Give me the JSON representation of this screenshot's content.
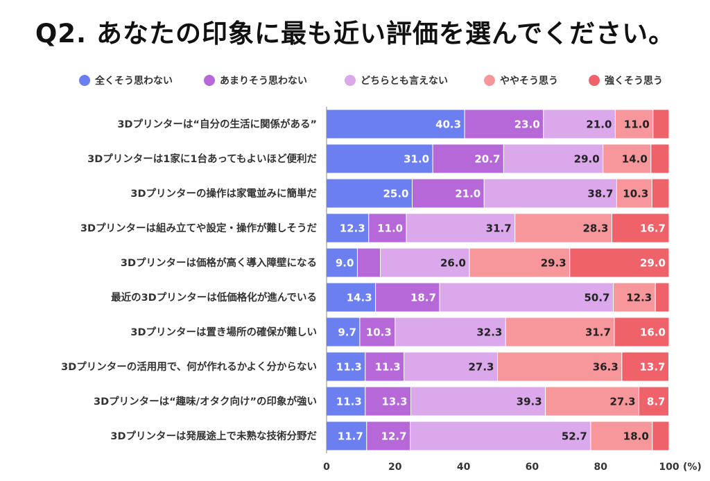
{
  "title": "Q2. あなたの印象に最も近い評価を選んでください。",
  "chart_data": {
    "type": "bar",
    "orientation": "horizontal",
    "stacked": true,
    "unit_suffix": "(%)",
    "xlim": [
      0,
      100
    ],
    "xticks": [
      "0",
      "20",
      "40",
      "60",
      "80",
      "100"
    ],
    "legend_position": "top",
    "categories": [
      "3Dプリンターは“自分の生活に関係がある”",
      "3Dプリンターは1家に1台あってもよいほど便利だ",
      "3Dプリンターの操作は家電並みに簡単だ",
      "3Dプリンターは組み立てや設定・操作が難しそうだ",
      "3Dプリンターは価格が高く導入障壁になる",
      "最近の3Dプリンターは低価格化が進んでいる",
      "3Dプリンターは置き場所の確保が難しい",
      "3Dプリンターの活用用で、何が作れるかよく分からない",
      "3Dプリンターは“趣味/オタク向け”の印象が強い",
      "3Dプリンターは発展途上で未熟な技術分野だ"
    ],
    "series": [
      {
        "name": "全くそう思わない",
        "color": "#6b7ff0",
        "text_color": "#ffffff",
        "values": [
          40.3,
          31.0,
          25.0,
          12.3,
          9.0,
          14.3,
          9.7,
          11.3,
          11.3,
          11.7
        ]
      },
      {
        "name": "あまりそう思わない",
        "color": "#b668d9",
        "text_color": "#ffffff",
        "values": [
          23.0,
          20.7,
          21.0,
          11.0,
          6.7,
          18.7,
          10.3,
          11.3,
          13.3,
          12.7
        ]
      },
      {
        "name": "どちらとも言えない",
        "color": "#dba8ec",
        "text_color": "#222222",
        "values": [
          21.0,
          29.0,
          38.7,
          31.7,
          26.0,
          50.7,
          32.3,
          27.3,
          39.3,
          52.7
        ]
      },
      {
        "name": "ややそう思う",
        "color": "#f7979b",
        "text_color": "#222222",
        "values": [
          11.0,
          14.0,
          10.3,
          28.3,
          29.3,
          12.3,
          31.7,
          36.3,
          27.3,
          18.0
        ]
      },
      {
        "name": "強くそう思う",
        "color": "#f0626a",
        "text_color": "#ffffff",
        "values": [
          4.7,
          5.3,
          5.0,
          16.7,
          29.0,
          4.0,
          16.0,
          13.7,
          8.7,
          4.9
        ]
      }
    ],
    "labels_shown": [
      [
        "40.3",
        "23.0",
        "21.0",
        "11.0",
        ""
      ],
      [
        "31.0",
        "20.7",
        "29.0",
        "14.0",
        ""
      ],
      [
        "25.0",
        "21.0",
        "38.7",
        "10.3",
        ""
      ],
      [
        "12.3",
        "11.0",
        "31.7",
        "28.3",
        "16.7"
      ],
      [
        "9.0",
        "",
        "26.0",
        "29.3",
        "29.0"
      ],
      [
        "14.3",
        "18.7",
        "50.7",
        "12.3",
        ""
      ],
      [
        "9.7",
        "10.3",
        "32.3",
        "31.7",
        "16.0"
      ],
      [
        "11.3",
        "11.3",
        "27.3",
        "36.3",
        "13.7"
      ],
      [
        "11.3",
        "13.3",
        "39.3",
        "27.3",
        "8.7"
      ],
      [
        "11.7",
        "12.7",
        "52.7",
        "18.0",
        ""
      ]
    ]
  }
}
